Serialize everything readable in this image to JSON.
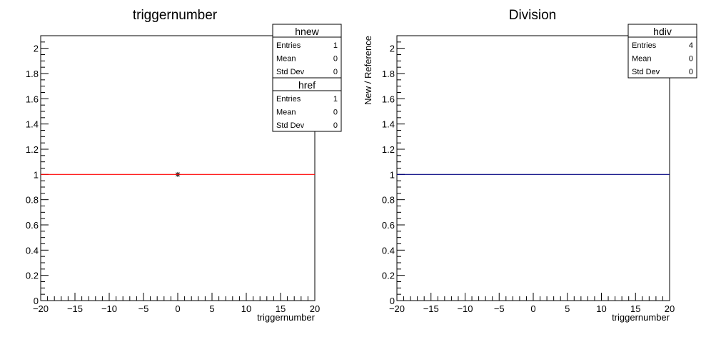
{
  "chart_data": [
    {
      "type": "line",
      "title": "triggernumber",
      "xlabel": "triggernumber",
      "ylabel": "",
      "xlim": [
        -20,
        20
      ],
      "ylim": [
        0,
        2.1
      ],
      "x_ticks": [
        "−20",
        "−15",
        "−10",
        "−5",
        "0",
        "5",
        "10",
        "15",
        "20"
      ],
      "y_ticks": [
        "0",
        "0.2",
        "0.4",
        "0.6",
        "0.8",
        "1",
        "1.2",
        "1.4",
        "1.6",
        "1.8",
        "2"
      ],
      "grid": false,
      "series": [
        {
          "name": "hnew",
          "color": "#000000",
          "marker": "star",
          "points": [
            {
              "x": 0,
              "y": 1
            }
          ]
        },
        {
          "name": "href",
          "color": "#ff0000",
          "marker": "none",
          "line_x": [
            -20,
            20
          ],
          "line_y": [
            1,
            1
          ]
        }
      ],
      "stats_boxes": [
        {
          "title": "hnew",
          "rows": [
            {
              "label": "Entries",
              "value": "1"
            },
            {
              "label": "Mean",
              "value": "0"
            },
            {
              "label": "Std Dev",
              "value": "0"
            }
          ]
        },
        {
          "title": "href",
          "rows": [
            {
              "label": "Entries",
              "value": "1"
            },
            {
              "label": "Mean",
              "value": "0"
            },
            {
              "label": "Std Dev",
              "value": "0"
            }
          ]
        }
      ]
    },
    {
      "type": "line",
      "title": "Division",
      "xlabel": "triggernumber",
      "ylabel": "New / Reference",
      "xlim": [
        -20,
        20
      ],
      "ylim": [
        0,
        2.1
      ],
      "x_ticks": [
        "−20",
        "−15",
        "−10",
        "−5",
        "0",
        "5",
        "10",
        "15",
        "20"
      ],
      "y_ticks": [
        "0",
        "0.2",
        "0.4",
        "0.6",
        "0.8",
        "1",
        "1.2",
        "1.4",
        "1.6",
        "1.8",
        "2"
      ],
      "grid": false,
      "series": [
        {
          "name": "hdiv",
          "color": "#000080",
          "marker": "none",
          "line_x": [
            -20,
            20
          ],
          "line_y": [
            1,
            1
          ]
        }
      ],
      "stats_boxes": [
        {
          "title": "hdiv",
          "rows": [
            {
              "label": "Entries",
              "value": "4"
            },
            {
              "label": "Mean",
              "value": "0"
            },
            {
              "label": "Std Dev",
              "value": "0"
            }
          ]
        }
      ]
    }
  ]
}
